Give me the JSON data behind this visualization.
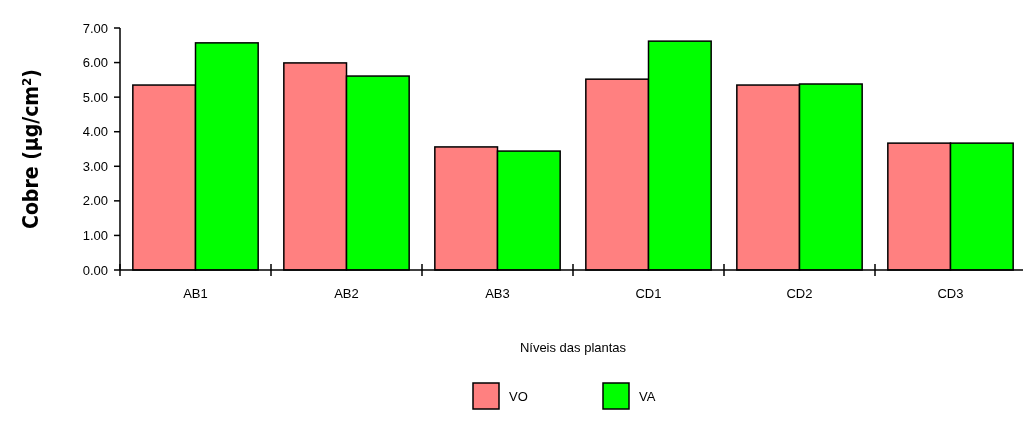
{
  "chart_data": {
    "type": "bar",
    "xlabel": "Níveis das plantas",
    "ylabel": "Cobre (µg/cm²)",
    "categories": [
      "AB1",
      "AB2",
      "AB3",
      "CD1",
      "CD2",
      "CD3"
    ],
    "series": [
      {
        "name": "VO",
        "color": "#ff8080",
        "values": [
          5.35,
          5.99,
          3.56,
          5.52,
          5.35,
          3.67
        ]
      },
      {
        "name": "VA",
        "color": "#00ff00",
        "values": [
          6.57,
          5.61,
          3.44,
          6.62,
          5.38,
          3.67
        ]
      }
    ],
    "ylim": [
      0,
      7
    ],
    "yticks": [
      {
        "value": 0,
        "label": "0.00"
      },
      {
        "value": 1,
        "label": "1.00"
      },
      {
        "value": 2,
        "label": "2.00"
      },
      {
        "value": 3,
        "label": "3.00"
      },
      {
        "value": 4,
        "label": "4.00"
      },
      {
        "value": 5,
        "label": "5.00"
      },
      {
        "value": 6,
        "label": "6.00"
      },
      {
        "value": 7,
        "label": "7.00"
      }
    ],
    "grid": false,
    "legend": "bottom"
  }
}
